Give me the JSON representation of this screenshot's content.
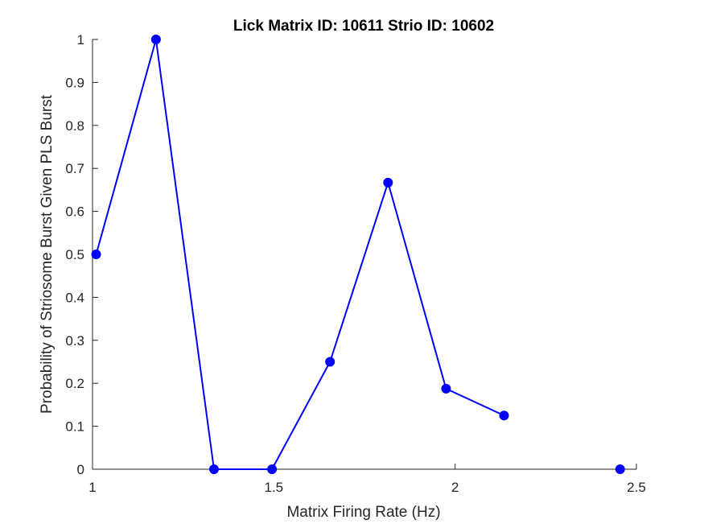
{
  "chart_data": {
    "type": "line",
    "title": "Lick Matrix ID: 10611 Strio ID: 10602",
    "xlabel": "Matrix Firing Rate (Hz)",
    "ylabel": "Probability of Striosome Burst Given PLS Burst",
    "xlim": [
      1,
      2.5
    ],
    "ylim": [
      0,
      1
    ],
    "xticks": [
      1,
      1.5,
      2,
      2.5
    ],
    "xtick_labels": [
      "1",
      "1.5",
      "2",
      "2.5"
    ],
    "yticks": [
      0,
      0.1,
      0.2,
      0.3,
      0.4,
      0.5,
      0.6,
      0.7,
      0.8,
      0.9,
      1
    ],
    "ytick_labels": [
      "0",
      "0.1",
      "0.2",
      "0.3",
      "0.4",
      "0.5",
      "0.6",
      "0.7",
      "0.8",
      "0.9",
      "1"
    ],
    "grid": false,
    "series": [
      {
        "color": "#0000ff",
        "marker": "filled-circle",
        "points": [
          {
            "x": 1.01,
            "y": 0.5
          },
          {
            "x": 1.175,
            "y": 1.0
          },
          {
            "x": 1.335,
            "y": 0.0
          },
          {
            "x": 1.495,
            "y": 0.0
          },
          {
            "x": 1.655,
            "y": 0.25
          },
          {
            "x": 1.815,
            "y": 0.667
          },
          {
            "x": 1.975,
            "y": 0.1875
          },
          {
            "x": 2.135,
            "y": 0.125
          },
          {
            "x": null,
            "y": null
          },
          {
            "x": 2.455,
            "y": 0.0
          }
        ]
      }
    ]
  }
}
